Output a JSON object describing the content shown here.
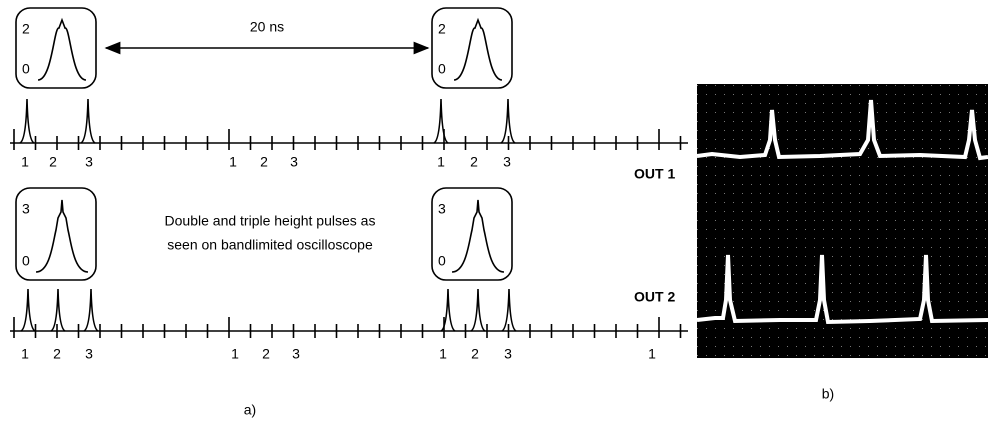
{
  "annotation": "20 ns",
  "caption": [
    "Double and triple height pulses as",
    "seen on bandlimited oscilloscope"
  ],
  "out1": {
    "label": "OUT 1",
    "inset_top": "2",
    "inset_bottom": "0",
    "tick_labels": [
      "1",
      "2",
      "3",
      "1",
      "2",
      "3",
      "1",
      "2",
      "3"
    ]
  },
  "out2": {
    "label": "OUT 2",
    "inset_top": "3",
    "inset_bottom": "0",
    "tick_labels": [
      "1",
      "2",
      "3",
      "1",
      "2",
      "3",
      "1",
      "2",
      "3",
      "1"
    ]
  },
  "panel_labels": [
    "a)",
    "b)"
  ]
}
